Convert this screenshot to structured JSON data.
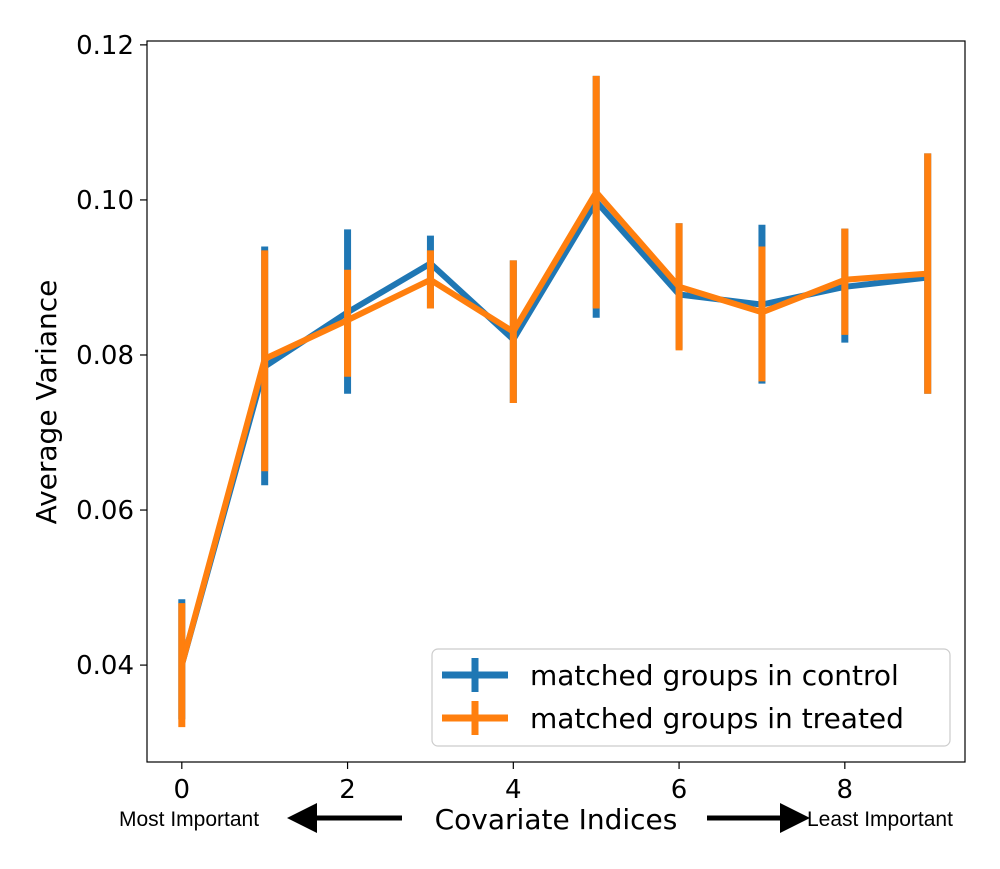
{
  "chart_data": {
    "type": "line",
    "xlabel": "Covariate Indices",
    "ylabel": "Average Variance",
    "xlim": [
      -0.42,
      9.45
    ],
    "ylim": [
      0.0275,
      0.1205
    ],
    "x_ticks": [
      0,
      2,
      4,
      6,
      8
    ],
    "y_ticks": [
      0.04,
      0.06,
      0.08,
      0.1,
      0.12
    ],
    "y_tick_labels": [
      "0.04",
      "0.06",
      "0.08",
      "0.10",
      "0.12"
    ],
    "grid": false,
    "legend_position": "lower-right",
    "x": [
      0,
      1,
      2,
      3,
      4,
      5,
      6,
      7,
      8,
      9
    ],
    "series": [
      {
        "name": "matched groups in control",
        "color": "#1f77b4",
        "values": [
          0.04,
          0.0785,
          0.0855,
          0.0918,
          0.082,
          0.0998,
          0.0878,
          0.0865,
          0.0888,
          0.09
        ],
        "err_low": [
          0.033,
          0.0632,
          0.075,
          0.086,
          0.0738,
          0.0848,
          0.0808,
          0.0763,
          0.0816,
          0.075
        ],
        "err_high": [
          0.0485,
          0.094,
          0.0962,
          0.0954,
          0.0922,
          0.116,
          0.097,
          0.0968,
          0.0963,
          0.106
        ]
      },
      {
        "name": "matched groups in treated",
        "color": "#ff7f0e",
        "values": [
          0.04,
          0.0795,
          0.0845,
          0.0897,
          0.083,
          0.101,
          0.0888,
          0.0855,
          0.0897,
          0.0905
        ],
        "err_low": [
          0.032,
          0.065,
          0.0772,
          0.086,
          0.0738,
          0.086,
          0.0806,
          0.0766,
          0.0826,
          0.075
        ],
        "err_high": [
          0.048,
          0.0935,
          0.091,
          0.0935,
          0.0922,
          0.116,
          0.097,
          0.094,
          0.0963,
          0.106
        ]
      }
    ],
    "annotations": {
      "left": "Most Important",
      "right": "Least Important"
    }
  }
}
